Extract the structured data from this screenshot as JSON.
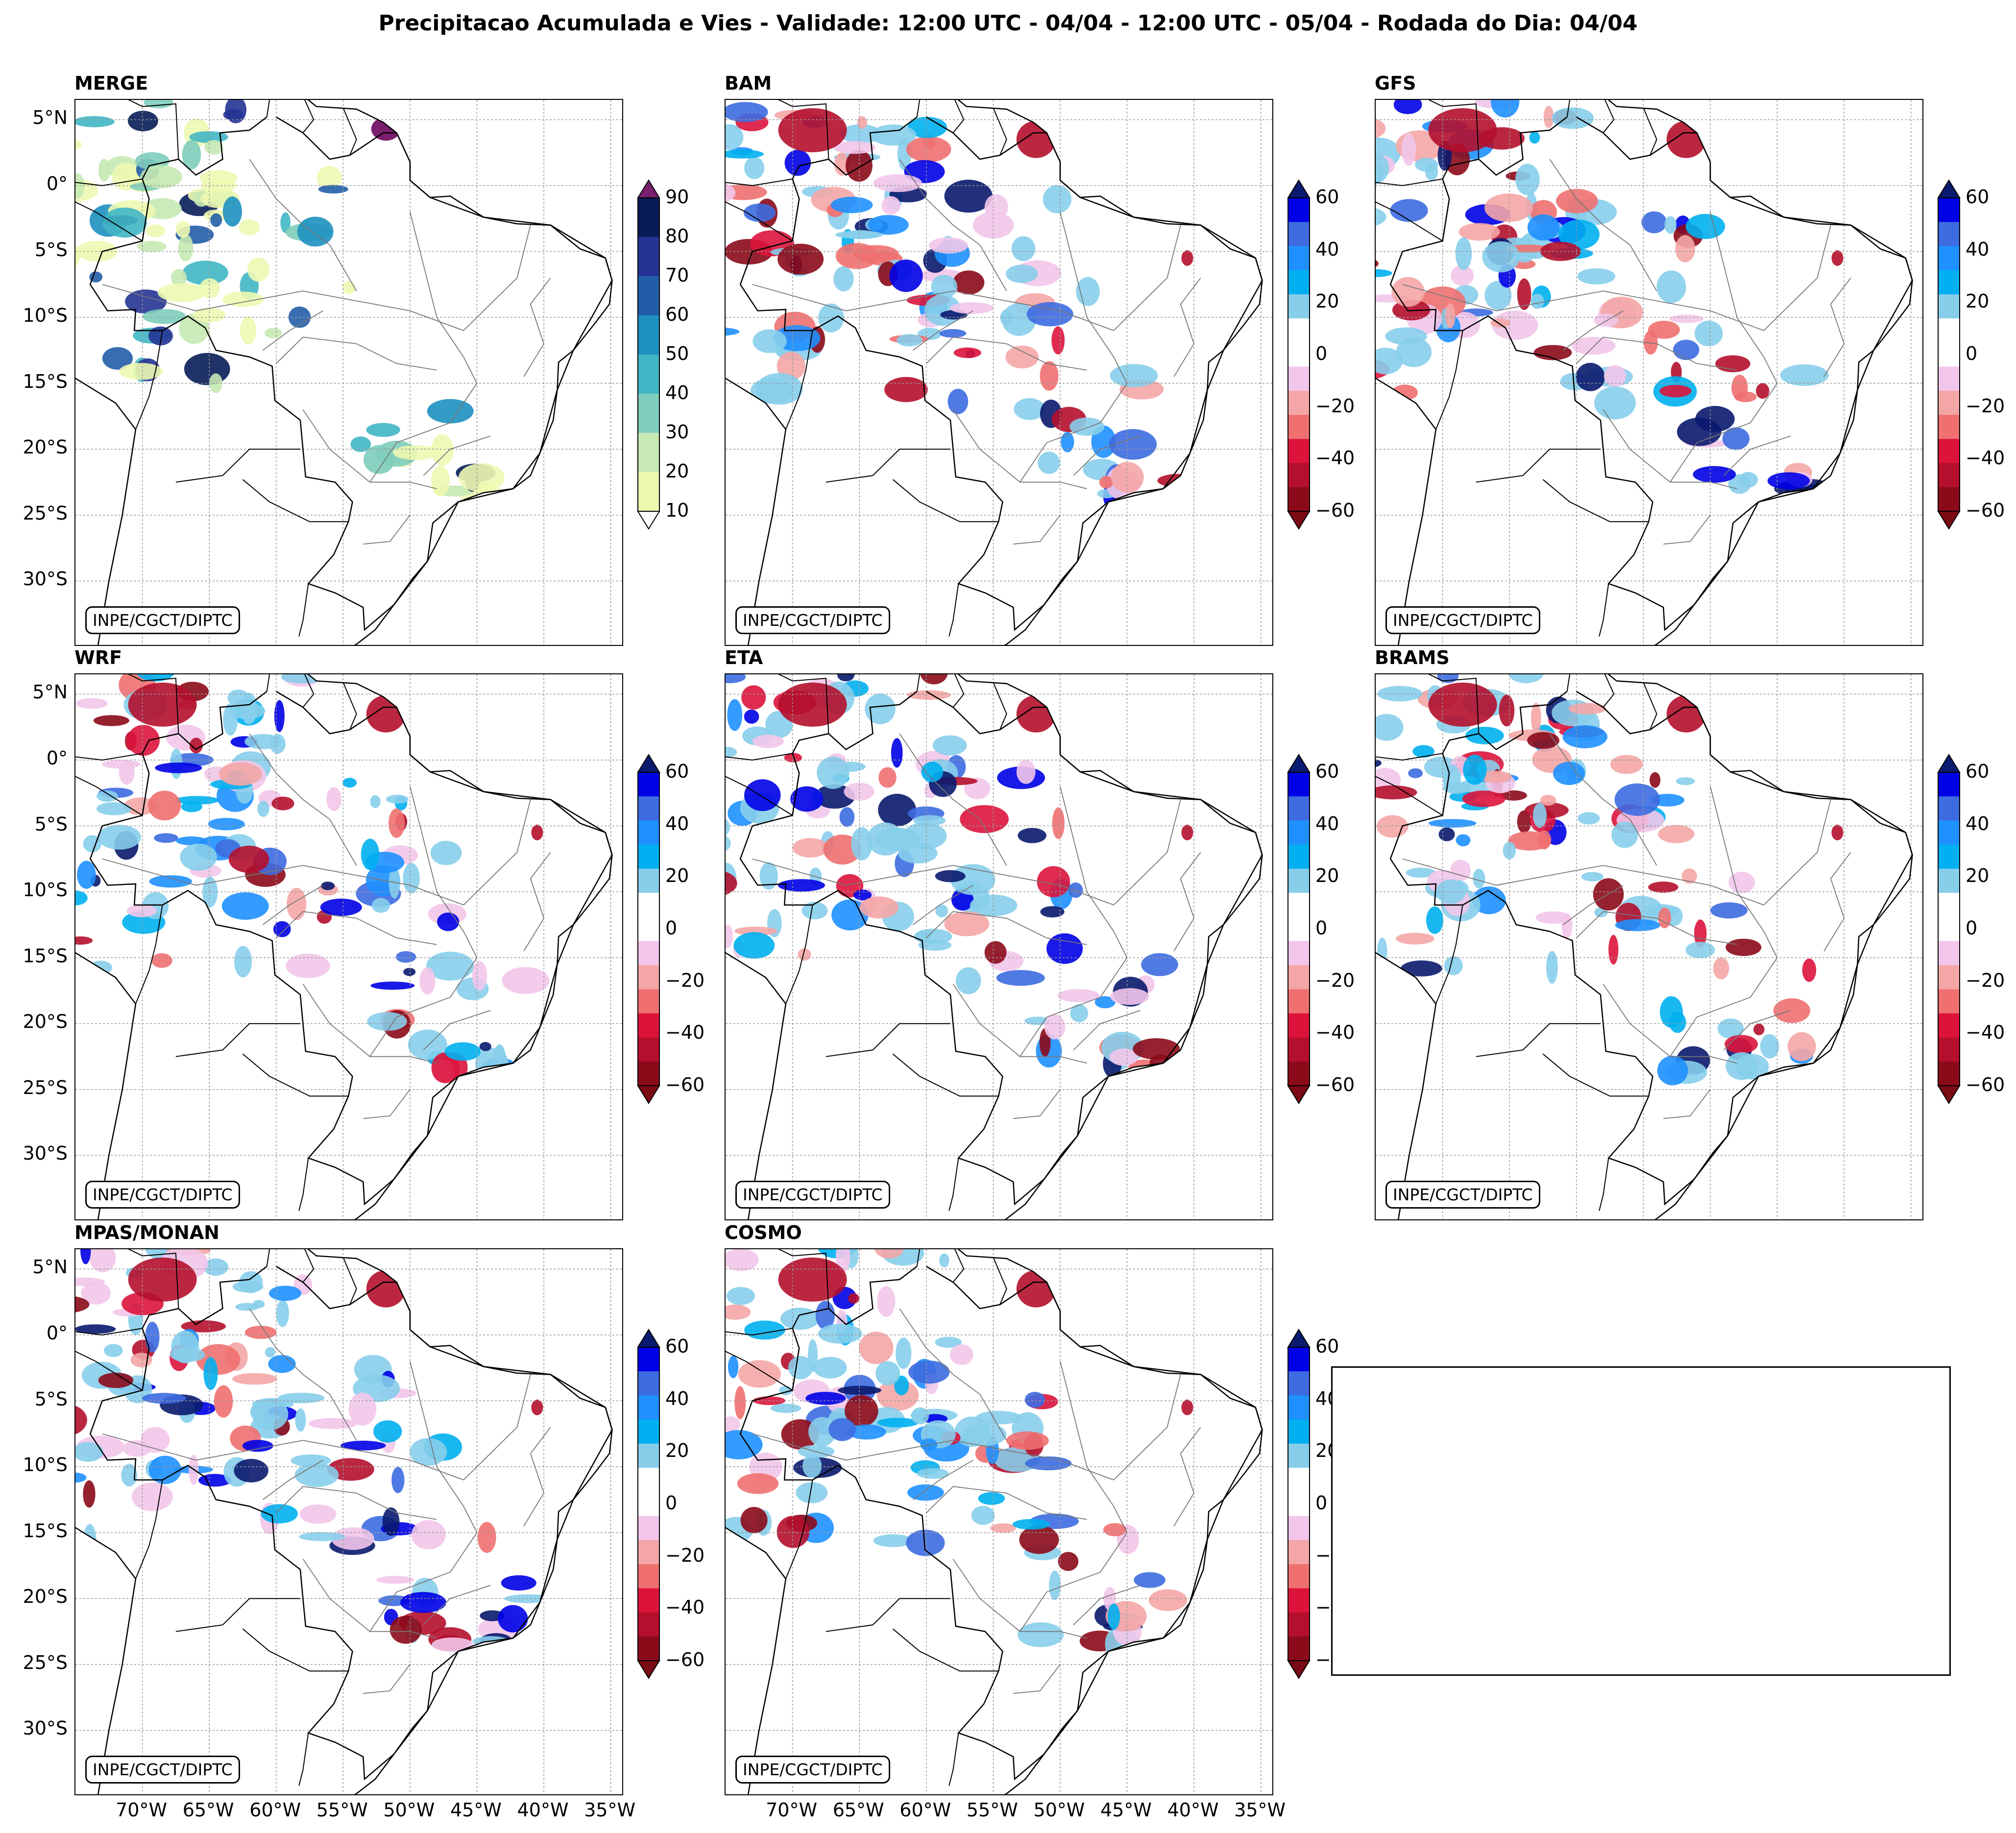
{
  "title": "Precipitacao Acumulada e Vies - Validade: 12:00 UTC - 04/04 - 12:00 UTC - 05/04 - Rodada do Dia: 04/04",
  "credit": "INPE/CGCT/DIPTC",
  "lat_labels": [
    "5°N",
    "0°",
    "5°S",
    "10°S",
    "15°S",
    "20°S",
    "25°S",
    "30°S"
  ],
  "lon_labels": [
    "70°W",
    "65°W",
    "60°W",
    "55°W",
    "50°W",
    "45°W",
    "40°W",
    "35°W"
  ],
  "panels": [
    {
      "name": "MERGE",
      "type": "precip"
    },
    {
      "name": "BAM",
      "type": "bias"
    },
    {
      "name": "GFS",
      "type": "bias"
    },
    {
      "name": "WRF",
      "type": "bias"
    },
    {
      "name": "ETA",
      "type": "bias"
    },
    {
      "name": "BRAMS",
      "type": "bias"
    },
    {
      "name": "MPAS/MONAN",
      "type": "bias"
    },
    {
      "name": "COSMO",
      "type": "bias"
    }
  ],
  "colorbars": {
    "precip": {
      "ticks": [
        "10",
        "20",
        "30",
        "40",
        "50",
        "60",
        "70",
        "80",
        "90"
      ],
      "colors": [
        "#edf8b1",
        "#c7e9b4",
        "#7fcdbb",
        "#41b6c4",
        "#1d91c0",
        "#225ea8",
        "#253494",
        "#081d58"
      ],
      "under_color": "#ffffff",
      "over_color": "#7a1f6e"
    },
    "bias": {
      "ticks": [
        "60",
        "40",
        "20",
        "0",
        "−20",
        "−40",
        "−60"
      ],
      "colors_top_to_bottom": [
        "#0000e6",
        "#3d6be0",
        "#1e90ff",
        "#00b0f0",
        "#87ceeb",
        "#ffffff",
        "#ffffff",
        "#f2c6ea",
        "#f4a6a6",
        "#f07070",
        "#dc143c",
        "#b40f2c",
        "#8b0a1a"
      ],
      "over_color": "#0a1a6e",
      "under_color": "#7a0a14"
    }
  }
}
